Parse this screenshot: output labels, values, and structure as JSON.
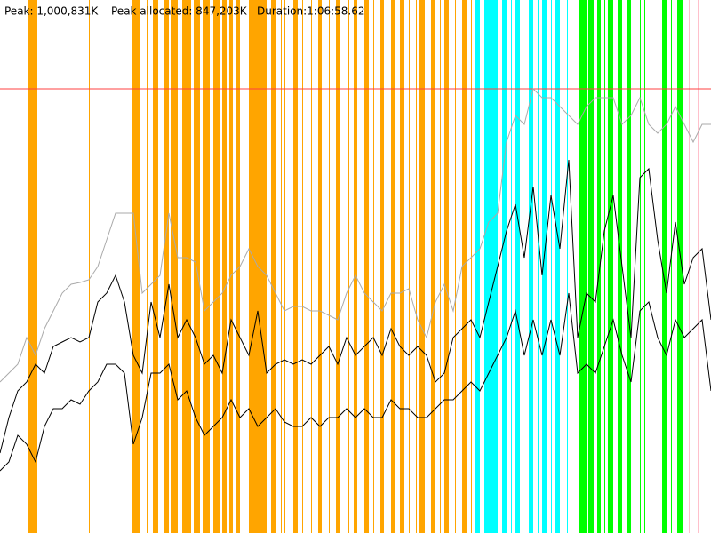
{
  "chart_data": {
    "type": "line",
    "header": [
      "Peak: 1,000,831K",
      "Peak allocated: 847,203K",
      "Duration:1:06:58.62"
    ],
    "xlim": [
      0,
      4000
    ],
    "ylim": [
      0,
      1200000
    ],
    "reference_line": {
      "value": 1000000,
      "color": "#ff4040"
    },
    "bands": [
      {
        "color": "#ffa500",
        "intervals": [
          [
            160,
            210
          ],
          [
            500,
            505
          ],
          [
            740,
            790
          ],
          [
            825,
            830
          ],
          [
            860,
            890
          ],
          [
            925,
            950
          ],
          [
            960,
            1000
          ],
          [
            1025,
            1075
          ],
          [
            1090,
            1125
          ],
          [
            1140,
            1180
          ],
          [
            1200,
            1240
          ],
          [
            1250,
            1275
          ],
          [
            1290,
            1310
          ],
          [
            1325,
            1350
          ],
          [
            1400,
            1500
          ],
          [
            1525,
            1550
          ],
          [
            1580,
            1585
          ],
          [
            1600,
            1605
          ],
          [
            1650,
            1675
          ],
          [
            1700,
            1705
          ],
          [
            1750,
            1755
          ],
          [
            1790,
            1810
          ],
          [
            1850,
            1855
          ],
          [
            1890,
            1910
          ],
          [
            1960,
            1965
          ],
          [
            1990,
            2010
          ],
          [
            2050,
            2075
          ],
          [
            2100,
            2105
          ],
          [
            2140,
            2160
          ],
          [
            2200,
            2225
          ],
          [
            2250,
            2275
          ],
          [
            2300,
            2305
          ],
          [
            2340,
            2345
          ],
          [
            2360,
            2390
          ],
          [
            2425,
            2450
          ],
          [
            2475,
            2480
          ],
          [
            2500,
            2525
          ],
          [
            2560,
            2565
          ],
          [
            2600,
            2625
          ],
          [
            2650,
            2655
          ]
        ]
      },
      {
        "color": "#00ffff",
        "intervals": [
          [
            2675,
            2700
          ],
          [
            2725,
            2800
          ],
          [
            2825,
            2850
          ],
          [
            2875,
            2880
          ],
          [
            2900,
            2925
          ],
          [
            2975,
            3000
          ],
          [
            3025,
            3030
          ],
          [
            3050,
            3075
          ],
          [
            3100,
            3105
          ],
          [
            3125,
            3150
          ],
          [
            3190,
            3195
          ]
        ]
      },
      {
        "color": "#00ff00",
        "intervals": [
          [
            3260,
            3300
          ],
          [
            3310,
            3340
          ],
          [
            3360,
            3380
          ],
          [
            3400,
            3405
          ],
          [
            3420,
            3450
          ],
          [
            3475,
            3500
          ],
          [
            3525,
            3550
          ],
          [
            3600,
            3605
          ],
          [
            3625,
            3630
          ],
          [
            3725,
            3750
          ],
          [
            3775,
            3780
          ],
          [
            3810,
            3840
          ]
        ]
      },
      {
        "color": "#ffc0cb",
        "intervals": [
          [
            3875,
            3880
          ],
          [
            3925,
            3930
          ],
          [
            3975,
            3980
          ]
        ]
      }
    ],
    "x": [
      0,
      50,
      100,
      150,
      200,
      250,
      300,
      350,
      400,
      450,
      500,
      550,
      600,
      650,
      700,
      750,
      800,
      850,
      900,
      950,
      1000,
      1050,
      1100,
      1150,
      1200,
      1250,
      1300,
      1350,
      1400,
      1450,
      1500,
      1550,
      1600,
      1650,
      1700,
      1750,
      1800,
      1850,
      1900,
      1950,
      2000,
      2050,
      2100,
      2150,
      2200,
      2250,
      2300,
      2350,
      2400,
      2450,
      2500,
      2550,
      2600,
      2650,
      2700,
      2750,
      2800,
      2850,
      2900,
      2950,
      3000,
      3050,
      3100,
      3150,
      3200,
      3250,
      3300,
      3350,
      3400,
      3450,
      3500,
      3550,
      3600,
      3650,
      3700,
      3750,
      3800,
      3850,
      3900,
      3950,
      4000
    ],
    "series": [
      {
        "color": "#aaaaaa",
        "values": [
          340000,
          360000,
          380000,
          440000,
          400000,
          460000,
          500000,
          540000,
          560000,
          564000,
          570000,
          600000,
          660000,
          720000,
          720000,
          720000,
          540000,
          560000,
          580000,
          720000,
          620000,
          620000,
          610000,
          500000,
          520000,
          540000,
          580000,
          600000,
          640000,
          600000,
          580000,
          540000,
          500000,
          510000,
          510000,
          500000,
          500000,
          490000,
          480000,
          540000,
          580000,
          540000,
          520000,
          500000,
          540000,
          540000,
          550000,
          480000,
          440000,
          520000,
          560000,
          500000,
          600000,
          620000,
          640000,
          700000,
          720000,
          880000,
          940000,
          920000,
          1000000,
          980000,
          980000,
          960000,
          940000,
          920000,
          960000,
          980000,
          980000,
          980000,
          920000,
          940000,
          980000,
          920000,
          900000,
          920000,
          960000,
          920000,
          880000,
          920000,
          920000
        ]
      },
      {
        "color": "#000000",
        "values": [
          180000,
          260000,
          320000,
          340000,
          380000,
          360000,
          420000,
          430000,
          440000,
          430000,
          440000,
          520000,
          540000,
          580000,
          520000,
          400000,
          360000,
          520000,
          440000,
          560000,
          440000,
          480000,
          440000,
          380000,
          400000,
          360000,
          480000,
          440000,
          400000,
          500000,
          360000,
          380000,
          390000,
          380000,
          390000,
          380000,
          400000,
          420000,
          380000,
          440000,
          400000,
          420000,
          440000,
          400000,
          460000,
          420000,
          400000,
          420000,
          400000,
          340000,
          360000,
          440000,
          460000,
          480000,
          440000,
          520000,
          600000,
          680000,
          740000,
          620000,
          780000,
          580000,
          760000,
          640000,
          840000,
          440000,
          540000,
          520000,
          680000,
          760000,
          600000,
          440000,
          800000,
          820000,
          660000,
          540000,
          700000,
          560000,
          620000,
          640000,
          480000
        ]
      },
      {
        "color": "#000000",
        "values": [
          140000,
          160000,
          220000,
          200000,
          160000,
          240000,
          280000,
          280000,
          300000,
          290000,
          320000,
          340000,
          380000,
          380000,
          360000,
          200000,
          260000,
          360000,
          360000,
          380000,
          300000,
          320000,
          260000,
          220000,
          240000,
          260000,
          300000,
          260000,
          280000,
          240000,
          260000,
          280000,
          250000,
          240000,
          240000,
          260000,
          240000,
          260000,
          260000,
          280000,
          260000,
          280000,
          260000,
          260000,
          300000,
          280000,
          280000,
          260000,
          260000,
          280000,
          300000,
          300000,
          320000,
          340000,
          320000,
          360000,
          400000,
          440000,
          500000,
          400000,
          480000,
          400000,
          480000,
          400000,
          540000,
          360000,
          380000,
          360000,
          420000,
          480000,
          400000,
          340000,
          500000,
          520000,
          440000,
          400000,
          480000,
          440000,
          460000,
          480000,
          320000
        ]
      }
    ]
  }
}
